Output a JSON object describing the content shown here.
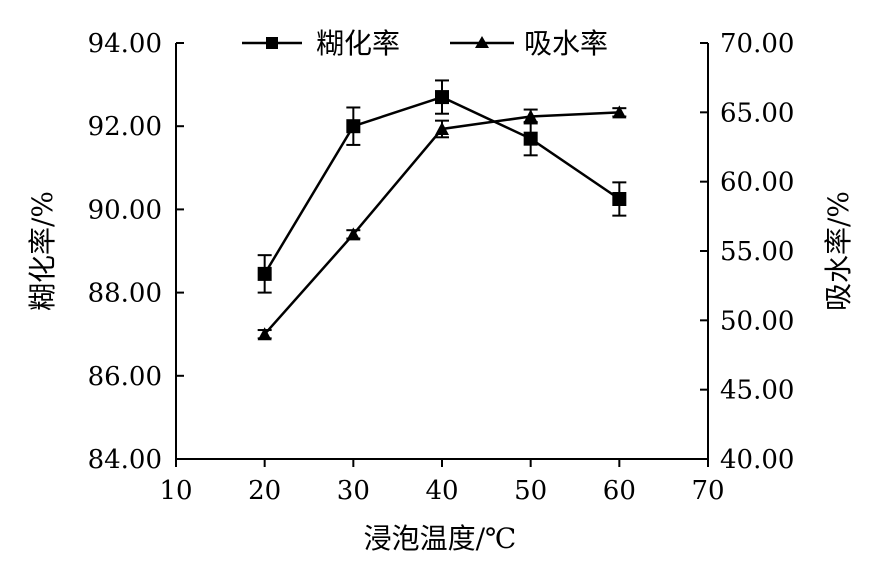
{
  "chart_data": {
    "type": "line",
    "xlabel": "浸泡温度/℃",
    "ylabel_left": "糊化率/%",
    "ylabel_right": "吸水率/%",
    "xlim": [
      10,
      70
    ],
    "xticks": [
      10,
      20,
      30,
      40,
      50,
      60,
      70
    ],
    "ylim_left": [
      84,
      94
    ],
    "yticks_left": [
      "84.00",
      "86.00",
      "88.00",
      "90.00",
      "92.00",
      "94.00"
    ],
    "ylim_right": [
      40,
      70
    ],
    "yticks_right": [
      "40.00",
      "45.00",
      "50.00",
      "55.00",
      "60.00",
      "65.00",
      "70.00"
    ],
    "legend_position": "top",
    "grid": false,
    "series": [
      {
        "name": "糊化率",
        "axis": "left",
        "marker": "square",
        "x": [
          20,
          30,
          40,
          50,
          60
        ],
        "values": [
          88.45,
          92.0,
          92.7,
          91.7,
          90.25
        ],
        "errors": [
          0.45,
          0.45,
          0.4,
          0.4,
          0.4
        ]
      },
      {
        "name": "吸水率",
        "axis": "right",
        "marker": "triangle",
        "x": [
          20,
          30,
          40,
          50,
          60
        ],
        "values": [
          49.0,
          56.2,
          63.8,
          64.7,
          65.0
        ],
        "errors": [
          0.3,
          0.3,
          0.6,
          0.5,
          0.3
        ]
      }
    ]
  }
}
